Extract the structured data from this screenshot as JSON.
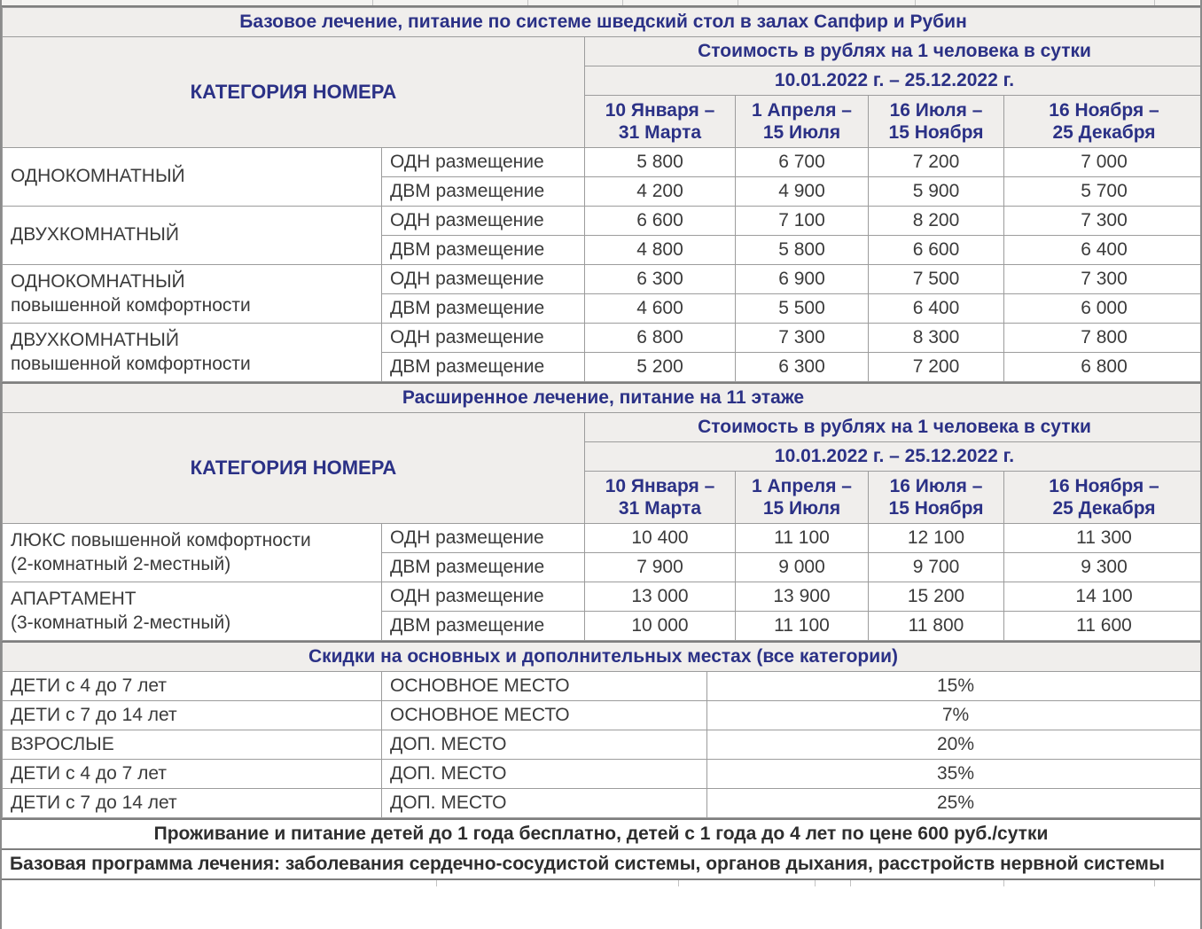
{
  "colors": {
    "header_text_navy": "#2b3186",
    "body_text": "#3b3b3b",
    "header_bg": "#f0eeec",
    "border": "#9c9c9c",
    "border_dark": "#7e7e7e"
  },
  "base_section": {
    "title": "Базовое лечение, питание по системе шведский стол в залах Сапфир и Рубин",
    "category_header": "КАТЕГОРИЯ НОМЕРА",
    "cost_header": "Стоимость в рублях на 1 человека в сутки",
    "period_header": "10.01.2022 г. – 25.12.2022 г.",
    "seasons": [
      [
        "10 Января –",
        "31 Марта"
      ],
      [
        "1 Апреля –",
        "15 Июля"
      ],
      [
        "16 Июля –",
        "15 Ноября"
      ],
      [
        "16 Ноября –",
        "25 Декабря"
      ]
    ],
    "rows": [
      {
        "category": [
          "ОДНОКОМНАТНЫЙ"
        ],
        "placements": [
          {
            "type": "ОДН размещение",
            "prices": [
              "5 800",
              "6 700",
              "7 200",
              "7 000"
            ]
          },
          {
            "type": "ДВМ размещение",
            "prices": [
              "4 200",
              "4 900",
              "5 900",
              "5 700"
            ]
          }
        ]
      },
      {
        "category": [
          "ДВУХКОМНАТНЫЙ"
        ],
        "placements": [
          {
            "type": "ОДН размещение",
            "prices": [
              "6 600",
              "7 100",
              "8 200",
              "7 300"
            ]
          },
          {
            "type": "ДВМ размещение",
            "prices": [
              "4 800",
              "5 800",
              "6 600",
              "6 400"
            ]
          }
        ]
      },
      {
        "category": [
          "ОДНОКОМНАТНЫЙ",
          "повышенной комфортности"
        ],
        "placements": [
          {
            "type": "ОДН размещение",
            "prices": [
              "6 300",
              "6 900",
              "7 500",
              "7 300"
            ]
          },
          {
            "type": "ДВМ размещение",
            "prices": [
              "4 600",
              "5 500",
              "6 400",
              "6 000"
            ]
          }
        ]
      },
      {
        "category": [
          "ДВУХКОМНАТНЫЙ",
          "повышенной комфортности"
        ],
        "placements": [
          {
            "type": "ОДН размещение",
            "prices": [
              "6 800",
              "7 300",
              "8 300",
              "7 800"
            ]
          },
          {
            "type": "ДВМ размещение",
            "prices": [
              "5 200",
              "6 300",
              "7 200",
              "6 800"
            ]
          }
        ]
      }
    ]
  },
  "extended_section": {
    "title": "Расширенное лечение, питание на 11 этаже",
    "category_header": "КАТЕГОРИЯ НОМЕРА",
    "cost_header": "Стоимость в рублях на 1 человека в сутки",
    "period_header": "10.01.2022 г. – 25.12.2022 г.",
    "seasons": [
      [
        "10 Января –",
        "31 Марта"
      ],
      [
        "1 Апреля –",
        "15 Июля"
      ],
      [
        "16 Июля –",
        "15 Ноября"
      ],
      [
        "16 Ноября –",
        "25 Декабря"
      ]
    ],
    "rows": [
      {
        "category": [
          "ЛЮКС повышенной комфортности",
          "(2-комнатный 2-местный)"
        ],
        "placements": [
          {
            "type": "ОДН размещение",
            "prices": [
              "10 400",
              "11 100",
              "12 100",
              "11 300"
            ]
          },
          {
            "type": "ДВМ размещение",
            "prices": [
              "7 900",
              "9 000",
              "9 700",
              "9 300"
            ]
          }
        ]
      },
      {
        "category": [
          "АПАРТАМЕНТ",
          "(3-комнатный 2-местный)"
        ],
        "placements": [
          {
            "type": "ОДН размещение",
            "prices": [
              "13 000",
              "13 900",
              "15 200",
              "14 100"
            ]
          },
          {
            "type": "ДВМ размещение",
            "prices": [
              "10 000",
              "11 100",
              "11 800",
              "11 600"
            ]
          }
        ]
      }
    ]
  },
  "discounts": {
    "title": "Скидки на основных и дополнительных местах (все категории)",
    "rows": [
      {
        "who": "ДЕТИ с 4 до 7 лет",
        "place": "ОСНОВНОЕ МЕСТО",
        "discount": "15%"
      },
      {
        "who": "ДЕТИ с 7 до 14 лет",
        "place": "ОСНОВНОЕ МЕСТО",
        "discount": "7%"
      },
      {
        "who": "ВЗРОСЛЫЕ",
        "place": "ДОП. МЕСТО",
        "discount": "20%"
      },
      {
        "who": "ДЕТИ с 4 до 7 лет",
        "place": "ДОП. МЕСТО",
        "discount": "35%"
      },
      {
        "who": "ДЕТИ с 7 до 14 лет",
        "place": "ДОП. МЕСТО",
        "discount": "25%"
      }
    ]
  },
  "notes": {
    "infants": "Проживание и питание детей до 1 года бесплатно, детей с 1 года до 4 лет по цене 600 руб./сутки",
    "program": "Базовая программа лечения: заболевания сердечно-сосудистой системы, органов дыхания, расстройств нервной системы"
  }
}
